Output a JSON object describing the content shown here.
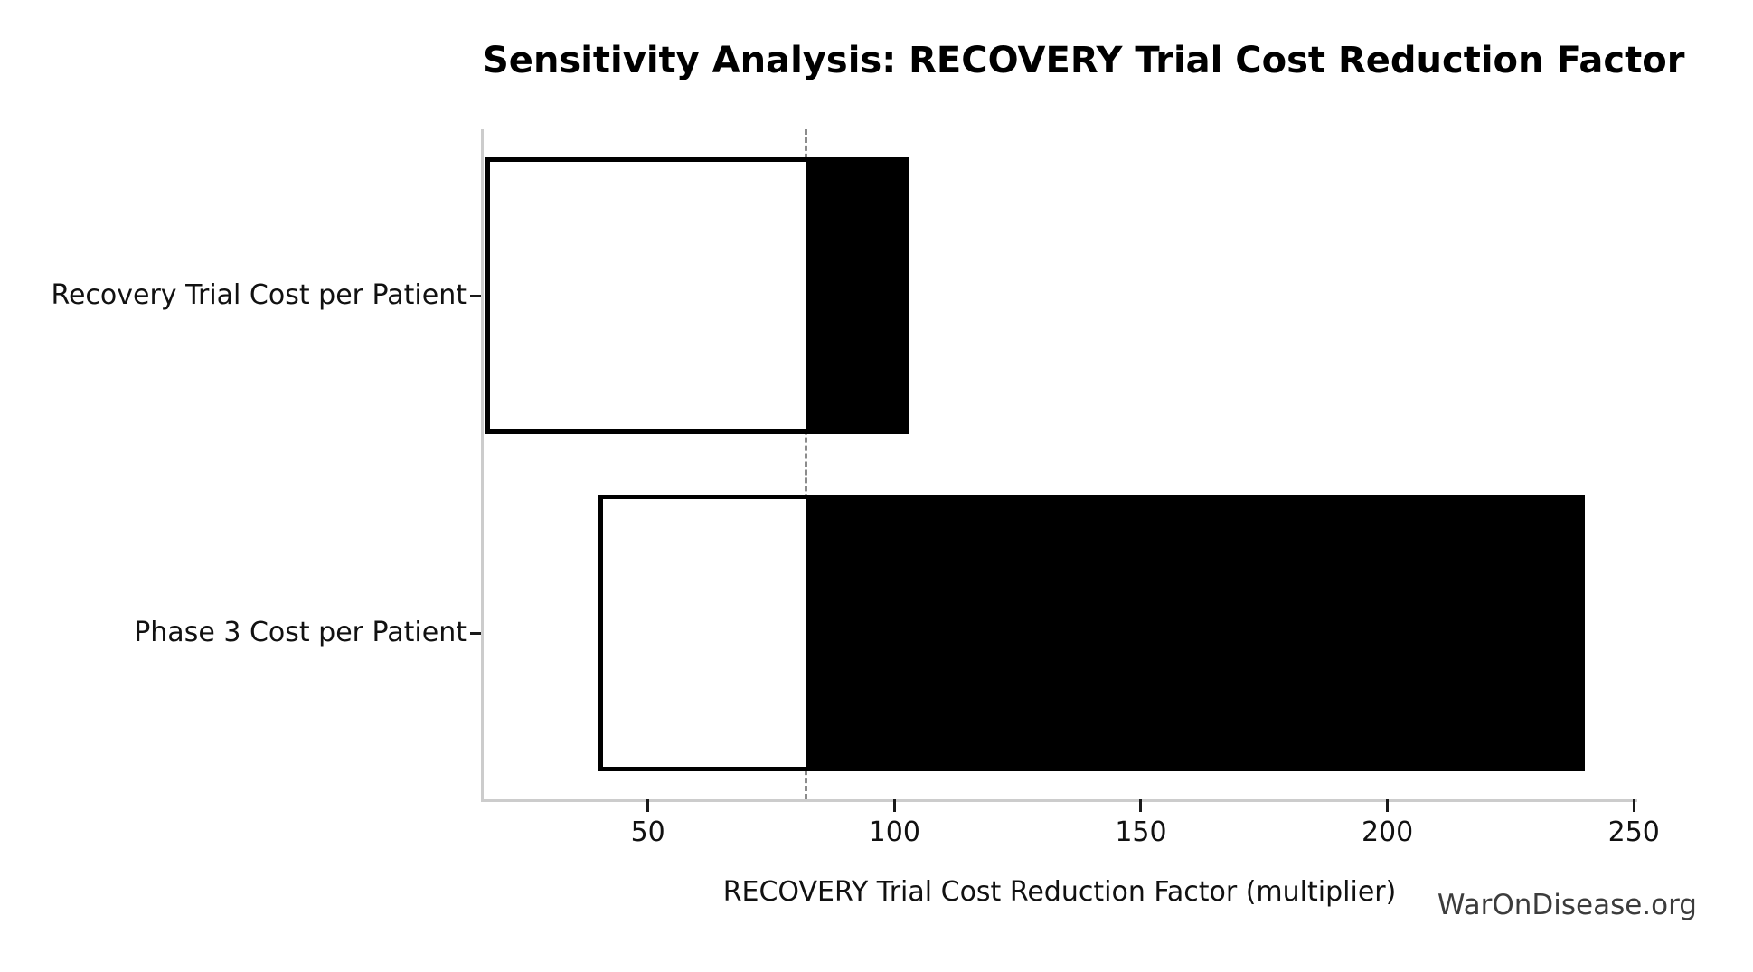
{
  "figure": {
    "watermark": "WarOnDisease.org"
  },
  "chart_data": {
    "type": "bar",
    "subtype": "tornado-sensitivity",
    "orientation": "horizontal",
    "title": "Sensitivity Analysis: RECOVERY Trial Cost Reduction Factor",
    "xlabel": "RECOVERY Trial Cost Reduction Factor (multiplier)",
    "ylabel": "",
    "categories": [
      "Recovery Trial Cost per Patient",
      "Phase 3 Cost per Patient"
    ],
    "bars": [
      {
        "label": "Recovery Trial Cost per Patient",
        "low": 17,
        "high": 103
      },
      {
        "label": "Phase 3 Cost per Patient",
        "low": 40,
        "high": 240
      }
    ],
    "baseline": 82,
    "x_ticks": [
      50,
      100,
      150,
      200,
      250
    ],
    "xlim": [
      16.5,
      250.5
    ],
    "grid": false,
    "legend": "none",
    "colors": {
      "bar_low_side_fill": "#ffffff",
      "bar_high_side_fill": "#000000",
      "bar_edge": "#000000",
      "baseline_dashed_line": "#8c8c8c",
      "spine": "#cccccc",
      "tick_mark": "#1a1a1a",
      "text": "#000000",
      "watermark": "#3c3c3c"
    }
  }
}
